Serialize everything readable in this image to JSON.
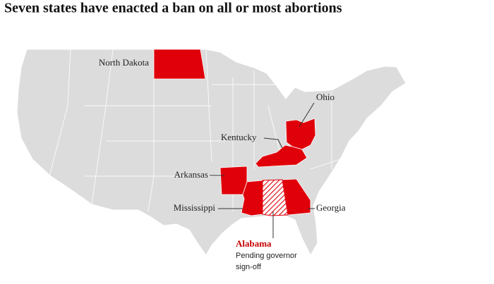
{
  "header": {
    "title": "Seven states have enacted a ban on all or most abortions"
  },
  "map": {
    "states": [
      {
        "label": "North Dakota"
      },
      {
        "label": "Ohio"
      },
      {
        "label": "Kentucky"
      },
      {
        "label": "Arkansas"
      },
      {
        "label": "Mississippi"
      },
      {
        "label": "Georgia"
      }
    ],
    "pending": {
      "label": "Alabama",
      "note": [
        "Pending governor",
        "sign-off"
      ]
    }
  }
}
